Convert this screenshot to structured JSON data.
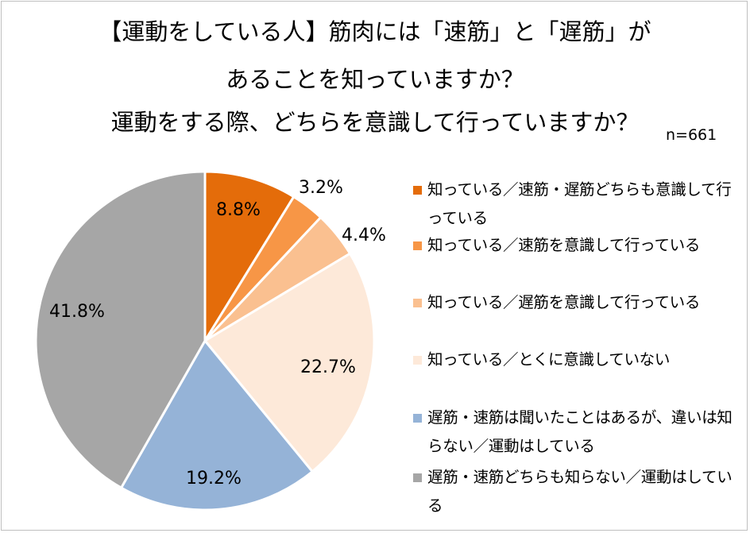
{
  "title": {
    "line1": "【運動をしている人】筋肉には「速筋」と「遅筋」が",
    "line2": "あることを知っていますか？",
    "line3": "運動をする際、どちらを意識して行っていますか？"
  },
  "sample_size": "n=661",
  "chart_data": {
    "type": "pie",
    "title": "【運動をしている人】筋肉には「速筋」と「遅筋」があることを知っていますか？ 運動をする際、どちらを意識して行っていますか？",
    "legend_position": "right",
    "slices": [
      {
        "label": "知っている／速筋・遅筋どちらも意識して行っている",
        "value": 8.8,
        "display": "8.8%",
        "color": "#e46c0a"
      },
      {
        "label": "知っている／速筋を意識して行っている",
        "value": 3.2,
        "display": "3.2%",
        "color": "#f79646"
      },
      {
        "label": "知っている／遅筋を意識して行っている",
        "value": 4.4,
        "display": "4.4%",
        "color": "#fac090"
      },
      {
        "label": "知っている／とくに意識していない",
        "value": 22.7,
        "display": "22.7%",
        "color": "#fde9d9"
      },
      {
        "label": "遅筋・速筋は聞いたことはあるが、違いは知らない／運動はしている",
        "value": 19.2,
        "display": "19.2%",
        "color": "#95b3d7"
      },
      {
        "label": "遅筋・速筋どちらも知らない／運動はしている",
        "value": 41.8,
        "display": "41.8%",
        "color": "#a6a6a6"
      }
    ]
  }
}
